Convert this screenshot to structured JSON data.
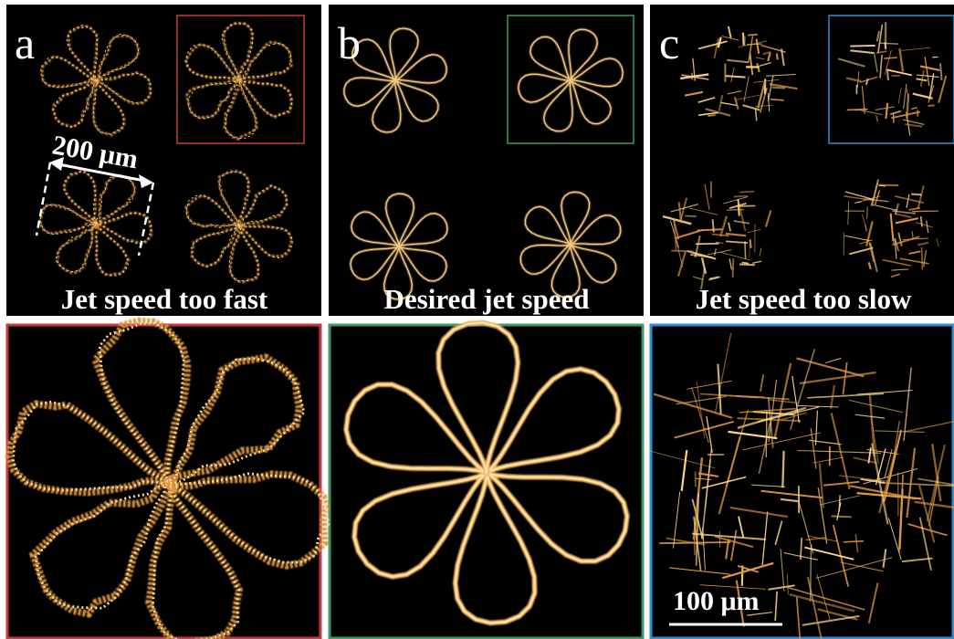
{
  "panels": [
    {
      "label": "a",
      "caption": "Jet speed too fast"
    },
    {
      "label": "b",
      "caption": "Desired jet speed"
    },
    {
      "label": "c",
      "caption": "Jet speed too slow"
    }
  ],
  "scale_bars": {
    "top": "200 μm",
    "bottom": "100 μm"
  }
}
